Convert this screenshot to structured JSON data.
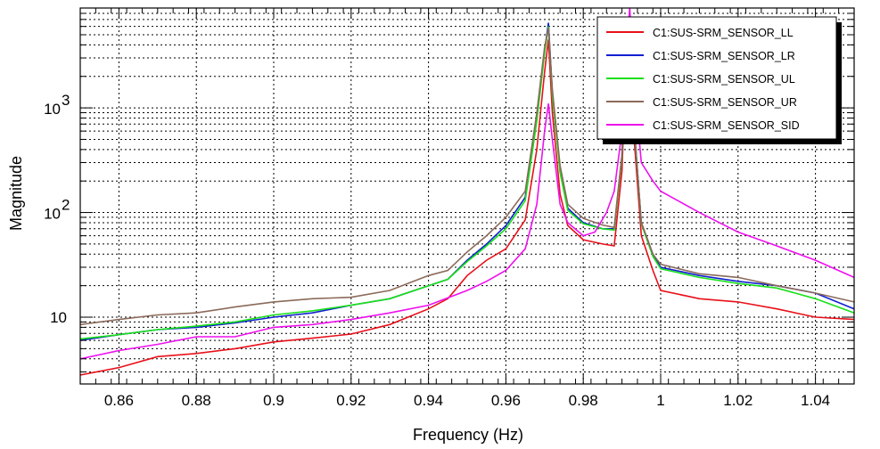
{
  "chart_data": {
    "type": "line",
    "xlabel": "Frequency (Hz)",
    "ylabel": "Magnitude",
    "xlim": [
      0.85,
      1.05
    ],
    "ylim": [
      2.3,
      9000
    ],
    "yscale": "log",
    "grid": true,
    "legend_position": "top-right",
    "x_ticks": [
      {
        "v": 0.86,
        "label": "0.86"
      },
      {
        "v": 0.88,
        "label": "0.88"
      },
      {
        "v": 0.9,
        "label": "0.9"
      },
      {
        "v": 0.92,
        "label": "0.92"
      },
      {
        "v": 0.94,
        "label": "0.94"
      },
      {
        "v": 0.96,
        "label": "0.96"
      },
      {
        "v": 0.98,
        "label": "0.98"
      },
      {
        "v": 1.0,
        "label": "1"
      },
      {
        "v": 1.02,
        "label": "1.02"
      },
      {
        "v": 1.04,
        "label": "1.04"
      }
    ],
    "y_ticks": [
      {
        "v": 10,
        "label": "10"
      },
      {
        "v": 100,
        "label": "10",
        "exp": "2"
      },
      {
        "v": 1000,
        "label": "10",
        "exp": "3"
      }
    ],
    "series": [
      {
        "name": "C1:SUS-SRM_SENSOR_LL",
        "color": "#e8101a",
        "x": [
          0.85,
          0.86,
          0.87,
          0.88,
          0.89,
          0.9,
          0.91,
          0.92,
          0.93,
          0.94,
          0.945,
          0.95,
          0.955,
          0.96,
          0.965,
          0.968,
          0.97,
          0.971,
          0.972,
          0.974,
          0.976,
          0.98,
          0.985,
          0.988,
          0.99,
          0.991,
          0.992,
          0.993,
          0.995,
          0.998,
          1.0,
          1.01,
          1.02,
          1.03,
          1.04,
          1.05
        ],
        "y": [
          2.8,
          3.3,
          4.2,
          4.5,
          5.0,
          5.8,
          6.3,
          6.9,
          8.5,
          12.0,
          15.0,
          25,
          35,
          45,
          85,
          400,
          2200,
          4500,
          900,
          150,
          75,
          55,
          50,
          48,
          250,
          2500,
          5000,
          600,
          60,
          28,
          18,
          15,
          14,
          12,
          10,
          9.5
        ]
      },
      {
        "name": "C1:SUS-SRM_SENSOR_LR",
        "color": "#1020d0",
        "x": [
          0.85,
          0.86,
          0.87,
          0.88,
          0.89,
          0.9,
          0.91,
          0.92,
          0.93,
          0.94,
          0.945,
          0.95,
          0.955,
          0.96,
          0.965,
          0.968,
          0.97,
          0.971,
          0.972,
          0.974,
          0.976,
          0.98,
          0.985,
          0.988,
          0.99,
          0.991,
          0.992,
          0.993,
          0.995,
          0.998,
          1.0,
          1.01,
          1.02,
          1.03,
          1.04,
          1.05
        ],
        "y": [
          6.0,
          6.8,
          7.6,
          8.0,
          8.8,
          10.0,
          11.0,
          13.0,
          15.0,
          20,
          23,
          35,
          50,
          75,
          140,
          800,
          3500,
          6500,
          1400,
          250,
          110,
          80,
          70,
          70,
          350,
          3000,
          5500,
          800,
          80,
          40,
          30,
          25,
          22,
          20,
          17,
          12
        ]
      },
      {
        "name": "C1:SUS-SRM_SENSOR_UL",
        "color": "#18e018",
        "x": [
          0.85,
          0.86,
          0.87,
          0.88,
          0.89,
          0.9,
          0.91,
          0.92,
          0.93,
          0.94,
          0.945,
          0.95,
          0.955,
          0.96,
          0.965,
          0.968,
          0.97,
          0.971,
          0.972,
          0.974,
          0.976,
          0.98,
          0.985,
          0.988,
          0.99,
          0.991,
          0.992,
          0.993,
          0.995,
          0.998,
          1.0,
          1.01,
          1.02,
          1.03,
          1.04,
          1.05
        ],
        "y": [
          6.2,
          6.8,
          7.6,
          8.2,
          9.0,
          10.5,
          11.5,
          13,
          15,
          20,
          23,
          34,
          48,
          70,
          130,
          750,
          3300,
          6000,
          1300,
          240,
          105,
          78,
          70,
          68,
          340,
          2900,
          5300,
          780,
          78,
          38,
          29,
          24,
          21,
          19,
          15,
          11
        ]
      },
      {
        "name": "C1:SUS-SRM_SENSOR_UR",
        "color": "#8b6a5a",
        "x": [
          0.85,
          0.86,
          0.87,
          0.88,
          0.89,
          0.9,
          0.91,
          0.92,
          0.93,
          0.94,
          0.945,
          0.95,
          0.955,
          0.96,
          0.965,
          0.968,
          0.97,
          0.971,
          0.972,
          0.974,
          0.976,
          0.98,
          0.985,
          0.988,
          0.99,
          0.991,
          0.992,
          0.993,
          0.995,
          0.998,
          1.0,
          1.01,
          1.02,
          1.03,
          1.04,
          1.05
        ],
        "y": [
          8.5,
          9.5,
          10.5,
          11.0,
          12.5,
          14.0,
          15.0,
          15.5,
          18,
          25,
          28,
          42,
          60,
          90,
          160,
          900,
          3800,
          5800,
          1500,
          280,
          120,
          88,
          76,
          72,
          360,
          2800,
          5200,
          760,
          80,
          40,
          32,
          26,
          24,
          20,
          17,
          14
        ]
      },
      {
        "name": "C1:SUS-SRM_SENSOR_SID",
        "color": "#ee10ee",
        "x": [
          0.85,
          0.86,
          0.87,
          0.88,
          0.89,
          0.9,
          0.91,
          0.92,
          0.93,
          0.94,
          0.95,
          0.955,
          0.96,
          0.965,
          0.968,
          0.97,
          0.971,
          0.972,
          0.974,
          0.976,
          0.98,
          0.983,
          0.986,
          0.988,
          0.99,
          0.991,
          0.992,
          0.993,
          0.995,
          0.998,
          1.0,
          1.01,
          1.02,
          1.03,
          1.04,
          1.05
        ],
        "y": [
          4.0,
          4.8,
          5.5,
          6.5,
          6.5,
          8.0,
          8.5,
          9.5,
          11,
          13,
          18,
          22,
          28,
          45,
          120,
          600,
          1100,
          500,
          120,
          80,
          60,
          65,
          100,
          160,
          600,
          3000,
          9000,
          2000,
          300,
          200,
          160,
          100,
          65,
          48,
          35,
          24
        ]
      }
    ]
  }
}
